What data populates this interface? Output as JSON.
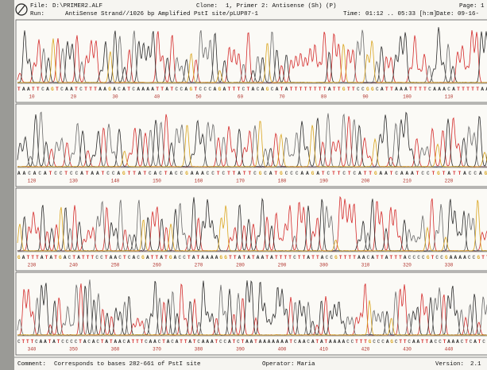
{
  "header": {
    "file": {
      "label": "File:",
      "value": "D:\\PRIMER2.ALF"
    },
    "clone": {
      "label": "Clone:",
      "value": "1, Primer 2: Antisense (Sh) (P)"
    },
    "page": {
      "label": "Page:",
      "value": "1"
    },
    "run": {
      "label": "Run:",
      "value": "AntiSense Strand//1026 bp Amplified PstI site/pLUP87-1"
    },
    "time": {
      "label": "Time:",
      "value": "01:12 .. 05:33 [h:m]"
    },
    "date": {
      "label": "Date:",
      "value": "09-16-"
    }
  },
  "panels": [
    {
      "sequence": "TAATTCAGTCAATCTTTAAGACATCAAAATTATCCAGTCCCAGATTTCTACAGCATATTTTTTTTATTGTTCCGGCATTAAATTTTCAAACATTTTTAAAAC",
      "positions": [
        "10",
        "20",
        "30",
        "40",
        "50",
        "60",
        "70",
        "80",
        "90",
        "100",
        "110"
      ]
    },
    {
      "sequence": "AACACATCCTCCATAATCCAGTTATCACTACCGAAACCTCTTATTCGCATGCCCAAGATCTTCTCATTGAATCAAATCCTGTATTACCAGACA",
      "positions": [
        "120",
        "130",
        "140",
        "150",
        "160",
        "170",
        "180",
        "190",
        "200",
        "210",
        "220"
      ]
    },
    {
      "sequence": "GATTTATATGACTATTTCCTAACTCACGATTATGACCTATAAAAGGTTATATAATATTTTCTTATTACCGTTTTAACATTATTTACCCCGTCCGAAAACCGTTTAC",
      "positions": [
        "230",
        "240",
        "250",
        "260",
        "270",
        "280",
        "290",
        "300",
        "310",
        "320",
        "330"
      ]
    },
    {
      "sequence": "CTTTCAATATCCCCTACACTATAACATTTCAACTACATTATCAAATCCATCTAATAAAAAAATCAACATATAAAACCTTTGCCCAGCTTCAATTACCTAAACTCATCCAGT",
      "positions": [
        "340",
        "350",
        "360",
        "370",
        "380",
        "390",
        "400",
        "410",
        "420",
        "430",
        "440"
      ]
    }
  ],
  "footer": {
    "comment": {
      "label": "Comment:",
      "value": "Corresponds to bases 282-661 of PstI site"
    },
    "operator": {
      "label": "Operator:",
      "value": "Maria"
    },
    "version": {
      "label": "Version:",
      "value": "2.1"
    }
  }
}
